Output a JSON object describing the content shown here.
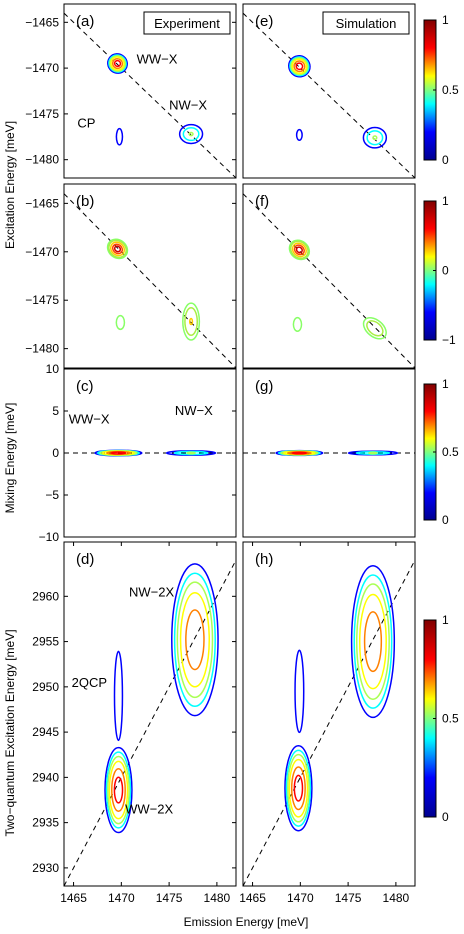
{
  "colors": {
    "jet": [
      "#00008f",
      "#0000ff",
      "#00ffff",
      "#ffff00",
      "#ff0000",
      "#800000"
    ],
    "dash": "#000000"
  },
  "figure": {
    "y_label_top": "Excitation Energy [meV]",
    "y_label_mix": "Mixing Energy [meV]",
    "y_label_bottom": "Two−quantum Excitation Energy [meV]",
    "x_label": "Emission Energy [meV]"
  },
  "chart_data": [
    {
      "id": "a",
      "type": "contour",
      "panel_label": "(a)",
      "box_title": "Experiment",
      "xlim": [
        1464,
        1482
      ],
      "ylim": [
        -1482,
        -1463
      ],
      "yticks": [
        -1465,
        -1470,
        -1475,
        -1480
      ],
      "diagonal": [
        [
          1464,
          -1464
        ],
        [
          1482,
          -1482
        ]
      ],
      "peaks": [
        {
          "x": 1469.6,
          "y": -1469.5,
          "rx": 1.1,
          "ry": 1.1,
          "amp": 1.0,
          "tilt": 40
        },
        {
          "x": 1477.3,
          "y": -1477.2,
          "rx": 1.4,
          "ry": 1.2,
          "amp": 0.45,
          "tilt": 0
        },
        {
          "x": 1469.8,
          "y": -1477.5,
          "rx": 0.5,
          "ry": 1.4,
          "amp": 0.2,
          "tilt": 0
        }
      ],
      "annotations": [
        {
          "text": "WW−X",
          "x": 1471.6,
          "y": -1469.5
        },
        {
          "text": "NW−X",
          "x": 1475.0,
          "y": -1474.5
        },
        {
          "text": "CP",
          "x": 1465.4,
          "y": -1476.5
        }
      ]
    },
    {
      "id": "e",
      "type": "contour",
      "panel_label": "(e)",
      "box_title": "Simulation",
      "xlim": [
        1464,
        1482
      ],
      "ylim": [
        -1482,
        -1463
      ],
      "diagonal": [
        [
          1464,
          -1464
        ],
        [
          1482,
          -1482
        ]
      ],
      "peaks": [
        {
          "x": 1469.9,
          "y": -1469.8,
          "rx": 1.2,
          "ry": 1.2,
          "amp": 1.0,
          "tilt": 35
        },
        {
          "x": 1477.8,
          "y": -1477.6,
          "rx": 1.4,
          "ry": 1.3,
          "amp": 0.45,
          "tilt": 0
        },
        {
          "x": 1469.9,
          "y": -1477.3,
          "rx": 0.5,
          "ry": 1.0,
          "amp": 0.18,
          "tilt": 0
        }
      ],
      "colorbar": {
        "min": 0,
        "max": 1,
        "ticks": [
          1,
          0.5,
          0
        ]
      }
    },
    {
      "id": "b",
      "type": "contour",
      "panel_label": "(b)",
      "xlim": [
        1464,
        1482
      ],
      "ylim": [
        -1482,
        -1463
      ],
      "yticks": [
        -1465,
        -1470,
        -1475,
        -1480
      ],
      "diagonal": [
        [
          1464,
          -1464
        ],
        [
          1482,
          -1482
        ]
      ],
      "peaks": [
        {
          "x": 1469.6,
          "y": -1469.7,
          "rx": 1.2,
          "ry": 1.0,
          "amp": 1.0,
          "tilt": 40
        },
        {
          "x": 1477.3,
          "y": -1477.2,
          "rx": 1.0,
          "ry": 2.2,
          "amp": 0.6,
          "tilt": 0
        },
        {
          "x": 1469.9,
          "y": -1477.3,
          "rx": 0.6,
          "ry": 1.0,
          "amp": 0.3,
          "tilt": 0
        }
      ]
    },
    {
      "id": "f",
      "type": "contour",
      "panel_label": "(f)",
      "xlim": [
        1464,
        1482
      ],
      "ylim": [
        -1482,
        -1463
      ],
      "diagonal": [
        [
          1464,
          -1464
        ],
        [
          1482,
          -1482
        ]
      ],
      "peaks": [
        {
          "x": 1469.9,
          "y": -1469.8,
          "rx": 1.2,
          "ry": 1.0,
          "amp": 1.0,
          "tilt": 40
        },
        {
          "x": 1477.8,
          "y": -1477.9,
          "rx": 1.6,
          "ry": 1.0,
          "amp": 0.55,
          "tilt": 40
        },
        {
          "x": 1469.7,
          "y": -1477.5,
          "rx": 0.6,
          "ry": 1.0,
          "amp": 0.3,
          "tilt": 0
        }
      ],
      "colorbar": {
        "min": -1,
        "max": 1,
        "ticks": [
          1,
          0,
          -1
        ]
      }
    },
    {
      "id": "c",
      "type": "contour",
      "panel_label": "(c)",
      "xlim": [
        1464,
        1482
      ],
      "ylim": [
        -10,
        10
      ],
      "yticks": [
        10,
        5,
        0,
        -5,
        -10
      ],
      "dashed_zero_line": true,
      "peaks": [
        {
          "x": 1469.7,
          "y": 0,
          "rx": 2.6,
          "ry": 0.35,
          "amp": 1.0,
          "tilt": 0
        },
        {
          "x": 1477.3,
          "y": 0,
          "rx": 3.0,
          "ry": 0.3,
          "amp": 0.45,
          "tilt": 0
        }
      ],
      "annotations": [
        {
          "text": "WW−X",
          "x": 1464.5,
          "y": 3.5
        },
        {
          "text": "NW−X",
          "x": 1475.6,
          "y": 4.5
        }
      ]
    },
    {
      "id": "g",
      "type": "contour",
      "panel_label": "(g)",
      "xlim": [
        1464,
        1482
      ],
      "ylim": [
        -10,
        10
      ],
      "dashed_zero_line": true,
      "peaks": [
        {
          "x": 1469.9,
          "y": 0,
          "rx": 2.6,
          "ry": 0.3,
          "amp": 1.0,
          "tilt": 0
        },
        {
          "x": 1477.6,
          "y": 0,
          "rx": 3.0,
          "ry": 0.25,
          "amp": 0.45,
          "tilt": 0
        }
      ],
      "colorbar": {
        "min": 0,
        "max": 1,
        "ticks": [
          1,
          0.5,
          0
        ]
      }
    },
    {
      "id": "d",
      "type": "contour",
      "panel_label": "(d)",
      "xlim": [
        1464,
        1482
      ],
      "ylim": [
        2928,
        2966
      ],
      "yticks": [
        2930,
        2935,
        2940,
        2945,
        2950,
        2955,
        2960
      ],
      "xticks": [
        1465,
        1470,
        1475,
        1480
      ],
      "diagonal": [
        [
          1464,
          2928
        ],
        [
          1482,
          2964
        ]
      ],
      "peaks": [
        {
          "x": 1469.7,
          "y": 2938.6,
          "rx": 1.5,
          "ry": 5.0,
          "amp": 1.0,
          "tilt": 0
        },
        {
          "x": 1477.7,
          "y": 2955.2,
          "rx": 2.6,
          "ry": 9.0,
          "amp": 0.9,
          "tilt": 0
        },
        {
          "x": 1469.7,
          "y": 2949.0,
          "rx": 0.55,
          "ry": 6.5,
          "amp": 0.28,
          "tilt": 0
        }
      ],
      "annotations": [
        {
          "text": "NW−2X",
          "x": 1470.8,
          "y": 2960.0
        },
        {
          "text": "2QCP",
          "x": 1464.8,
          "y": 2950.0
        },
        {
          "text": "WW−2X",
          "x": 1470.4,
          "y": 2936.0
        }
      ]
    },
    {
      "id": "h",
      "type": "contour",
      "panel_label": "(h)",
      "xlim": [
        1464,
        1482
      ],
      "ylim": [
        2928,
        2966
      ],
      "xticks": [
        1465,
        1470,
        1475,
        1480
      ],
      "diagonal": [
        [
          1464,
          2928
        ],
        [
          1482,
          2964
        ]
      ],
      "peaks": [
        {
          "x": 1469.8,
          "y": 2938.8,
          "rx": 1.5,
          "ry": 5.0,
          "amp": 1.0,
          "tilt": 0
        },
        {
          "x": 1477.6,
          "y": 2955.0,
          "rx": 2.4,
          "ry": 9.0,
          "amp": 0.9,
          "tilt": 0
        },
        {
          "x": 1469.9,
          "y": 2949.5,
          "rx": 0.6,
          "ry": 6.0,
          "amp": 0.28,
          "tilt": 0
        }
      ],
      "colorbar": {
        "min": 0,
        "max": 1,
        "ticks": [
          1,
          0.5,
          0
        ]
      }
    }
  ]
}
